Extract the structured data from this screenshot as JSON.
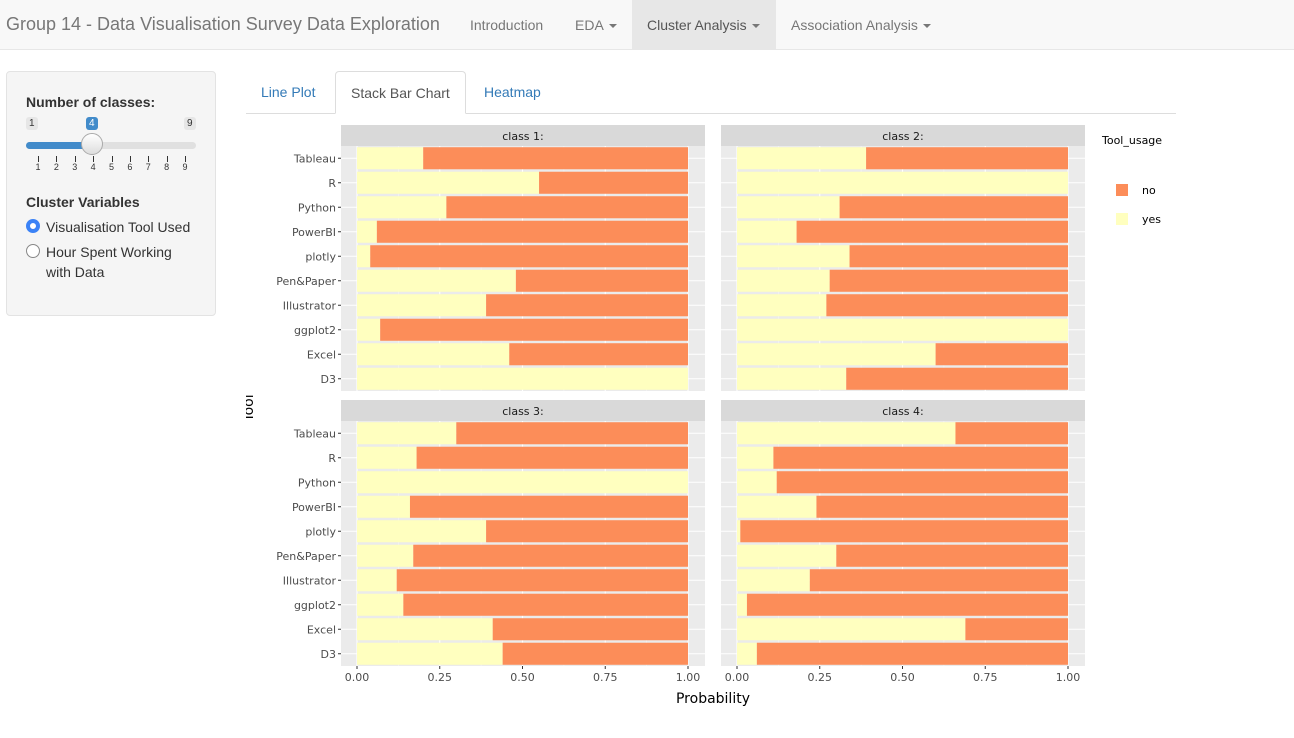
{
  "navbar": {
    "brand": "Group 14 - Data Visualisation Survey Data Exploration",
    "items": [
      {
        "label": "Introduction",
        "dropdown": false,
        "active": false
      },
      {
        "label": "EDA",
        "dropdown": true,
        "active": false
      },
      {
        "label": "Cluster Analysis",
        "dropdown": true,
        "active": true
      },
      {
        "label": "Association Analysis",
        "dropdown": true,
        "active": false
      }
    ]
  },
  "sidebar": {
    "classes_label": "Number of classes:",
    "slider": {
      "min": 1,
      "max": 9,
      "value": 4,
      "min_label": "1",
      "max_label": "9",
      "value_label": "4",
      "grid_labels": [
        "1",
        "2",
        "3",
        "4",
        "5",
        "6",
        "7",
        "8",
        "9"
      ]
    },
    "cluster_label": "Cluster Variables",
    "options": [
      {
        "label": "Visualisation Tool Used",
        "checked": true
      },
      {
        "label": "Hour Spent Working with Data",
        "checked": false
      }
    ]
  },
  "tabs": [
    {
      "label": "Line Plot",
      "active": false
    },
    {
      "label": "Stack Bar Chart",
      "active": true
    },
    {
      "label": "Heatmap",
      "active": false
    }
  ],
  "chart_data": {
    "type": "bar",
    "orientation": "horizontal-stacked",
    "xlabel": "Probability",
    "ylabel": "Tool",
    "xlim": [
      0,
      1
    ],
    "xticks": [
      "0.00",
      "0.25",
      "0.50",
      "0.75",
      "1.00"
    ],
    "categories": [
      "Tableau",
      "R",
      "Python",
      "PowerBI",
      "plotly",
      "Pen&Paper",
      "Illustrator",
      "ggplot2",
      "Excel",
      "D3"
    ],
    "legend": {
      "title": "Tool_usage",
      "placement": "right",
      "entries": [
        {
          "name": "no",
          "color": "#fc8d59"
        },
        {
          "name": "yes",
          "color": "#ffffbf"
        }
      ]
    },
    "colors": {
      "no": "#fc8d59",
      "yes": "#ffffbf",
      "panel": "#ebebeb",
      "strip": "#d9d9d9"
    },
    "facets": [
      {
        "title": "class 1:",
        "yes": [
          0.2,
          0.55,
          0.27,
          0.06,
          0.04,
          0.48,
          0.39,
          0.07,
          0.46,
          1.0
        ]
      },
      {
        "title": "class 2:",
        "yes": [
          0.39,
          1.0,
          0.31,
          0.18,
          0.34,
          0.28,
          0.27,
          1.0,
          0.6,
          0.33
        ]
      },
      {
        "title": "class 3:",
        "yes": [
          0.3,
          0.18,
          1.0,
          0.16,
          0.39,
          0.17,
          0.12,
          0.14,
          0.41,
          0.44
        ]
      },
      {
        "title": "class 4:",
        "yes": [
          0.66,
          0.11,
          0.12,
          0.24,
          0.01,
          0.3,
          0.22,
          0.03,
          0.69,
          0.06
        ]
      }
    ]
  }
}
